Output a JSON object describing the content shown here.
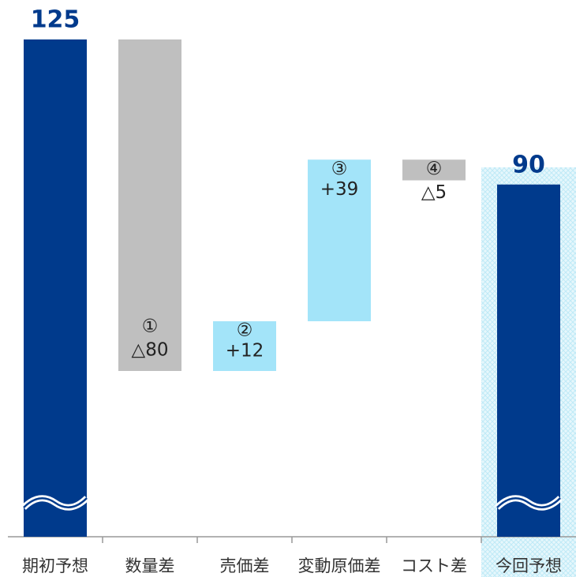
{
  "chart_data": {
    "type": "waterfall",
    "categories": [
      "期初予想",
      "数量差",
      "売価差",
      "変動原価差",
      "コスト差",
      "今回予想"
    ],
    "values": [
      125,
      -80,
      12,
      39,
      -5,
      90
    ],
    "value_labels": [
      "125",
      "△80",
      "+12",
      "+39",
      "△5",
      "90"
    ],
    "step_labels": [
      null,
      "①",
      "②",
      "③",
      "④",
      null
    ],
    "measure": [
      "total",
      "relative",
      "relative",
      "relative",
      "relative",
      "total"
    ],
    "colors": {
      "total": "#003a8c",
      "increase": "#a3e4f9",
      "decrease": "#bfbfbf"
    },
    "highlight": 5,
    "ylim": [
      5,
      125
    ]
  }
}
